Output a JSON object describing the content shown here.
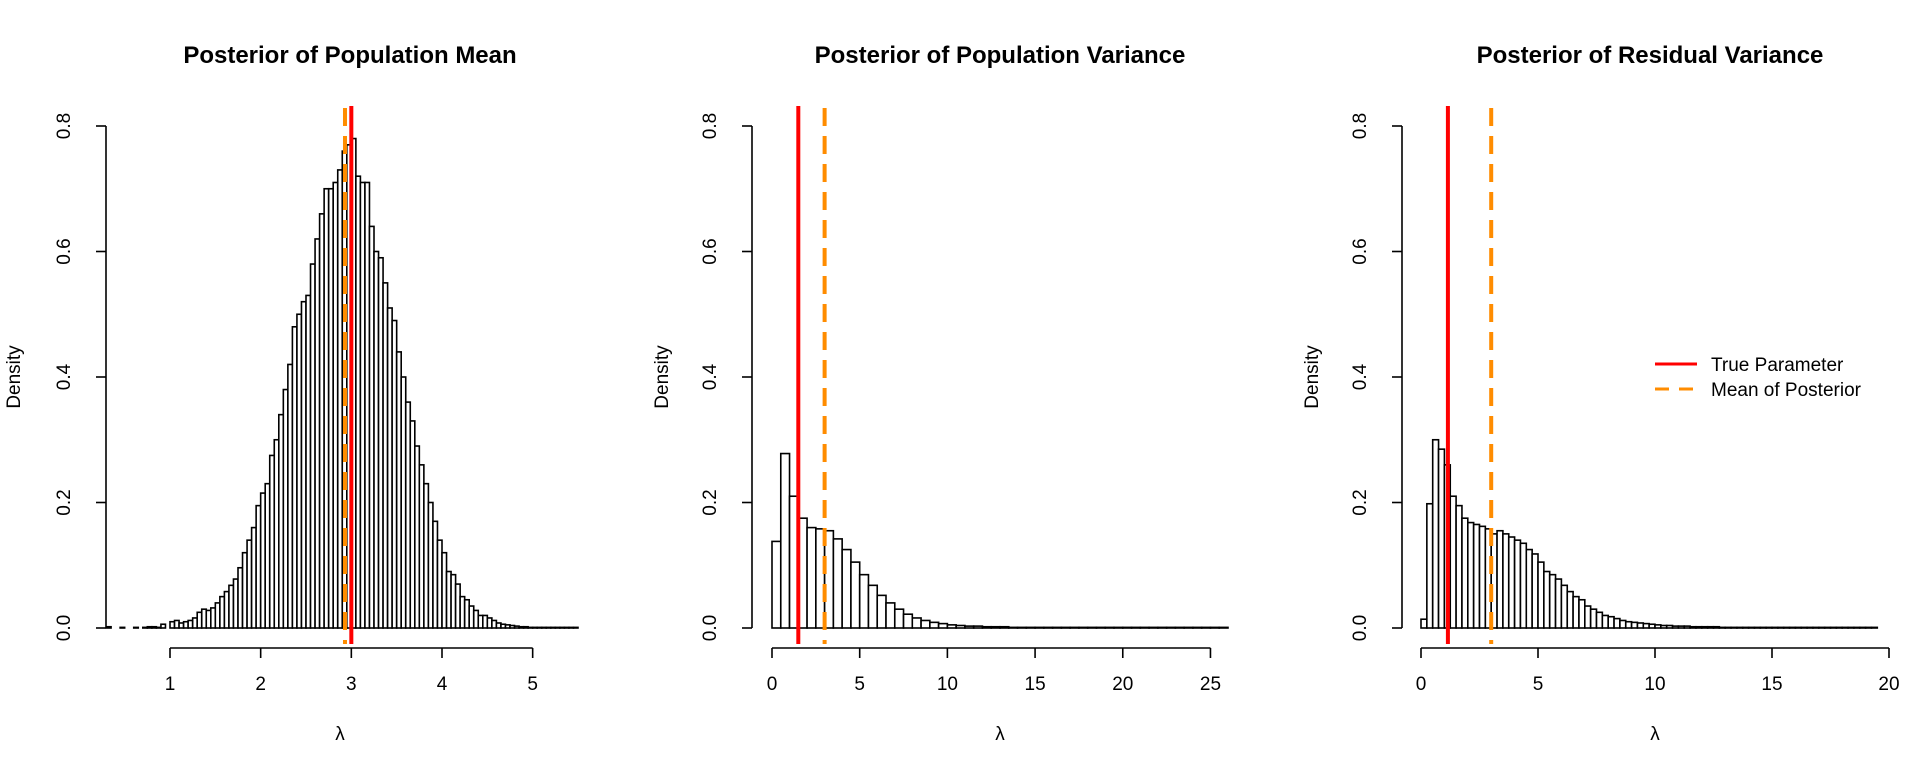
{
  "chart_data": [
    {
      "type": "histogram",
      "title": "Posterior of Population Mean",
      "xlabel": "λ",
      "ylabel": "Density",
      "xlim": [
        0.25,
        5.5
      ],
      "ylim": [
        0,
        0.8
      ],
      "xticks": [
        1,
        2,
        3,
        4,
        5
      ],
      "yticks": [
        0.0,
        0.2,
        0.4,
        0.6,
        0.8
      ],
      "bin_start": 0.3,
      "bin_width": 0.05,
      "density": [
        0.002,
        0,
        0,
        0.001,
        0,
        0,
        0.001,
        0,
        0.001,
        0.002,
        0.002,
        0.001,
        0.006,
        0,
        0.01,
        0.012,
        0.008,
        0.01,
        0.012,
        0.016,
        0.025,
        0.03,
        0.028,
        0.032,
        0.04,
        0.05,
        0.058,
        0.068,
        0.078,
        0.096,
        0.12,
        0.14,
        0.16,
        0.195,
        0.215,
        0.23,
        0.275,
        0.3,
        0.34,
        0.38,
        0.42,
        0.48,
        0.5,
        0.52,
        0.53,
        0.58,
        0.62,
        0.66,
        0.7,
        0.7,
        0.71,
        0.73,
        0.76,
        0.77,
        0.78,
        0.72,
        0.71,
        0.71,
        0.64,
        0.6,
        0.59,
        0.55,
        0.51,
        0.49,
        0.44,
        0.4,
        0.36,
        0.33,
        0.29,
        0.26,
        0.23,
        0.2,
        0.17,
        0.14,
        0.12,
        0.09,
        0.085,
        0.07,
        0.05,
        0.045,
        0.035,
        0.028,
        0.02,
        0.02,
        0.016,
        0.012,
        0.008,
        0.006,
        0.005,
        0.004,
        0.003,
        0.002,
        0.002,
        0.001,
        0.001,
        0.001,
        0.001,
        0.001,
        0.001,
        0.001,
        0.001,
        0.001,
        0.001,
        0.001
      ],
      "true_value": 3.0,
      "posterior_mean": 2.93
    },
    {
      "type": "histogram",
      "title": "Posterior of Population Variance",
      "xlabel": "λ",
      "ylabel": "Density",
      "xlim": [
        0,
        26
      ],
      "ylim": [
        0,
        0.8
      ],
      "xticks": [
        0,
        5,
        10,
        15,
        20,
        25
      ],
      "yticks": [
        0.0,
        0.2,
        0.4,
        0.6,
        0.8
      ],
      "bin_start": 0,
      "bin_width": 0.5,
      "density": [
        0.138,
        0.278,
        0.21,
        0.175,
        0.16,
        0.158,
        0.155,
        0.142,
        0.125,
        0.105,
        0.085,
        0.068,
        0.052,
        0.04,
        0.03,
        0.022,
        0.016,
        0.012,
        0.009,
        0.007,
        0.005,
        0.004,
        0.003,
        0.003,
        0.002,
        0.002,
        0.002,
        0.001,
        0.001,
        0.001,
        0.001,
        0.001,
        0.001,
        0.001,
        0.001,
        0.001,
        0.001,
        0.001,
        0.001,
        0.001,
        0.001,
        0.001,
        0.001,
        0.001,
        0.001,
        0.001,
        0.001,
        0.001,
        0.001,
        0.001,
        0.001,
        0.001
      ],
      "true_value": 1.5,
      "posterior_mean": 3.0
    },
    {
      "type": "histogram",
      "title": "Posterior of Residual Variance",
      "xlabel": "λ",
      "ylabel": "Density",
      "xlim": [
        0,
        20
      ],
      "ylim": [
        0,
        0.8
      ],
      "xticks": [
        0,
        5,
        10,
        15,
        20
      ],
      "yticks": [
        0.0,
        0.2,
        0.4,
        0.6,
        0.8
      ],
      "bin_start": 0,
      "bin_width": 0.25,
      "density": [
        0.014,
        0.198,
        0.3,
        0.285,
        0.26,
        0.21,
        0.195,
        0.175,
        0.168,
        0.165,
        0.162,
        0.158,
        0.15,
        0.155,
        0.15,
        0.145,
        0.14,
        0.135,
        0.125,
        0.118,
        0.105,
        0.09,
        0.085,
        0.078,
        0.068,
        0.058,
        0.05,
        0.045,
        0.035,
        0.03,
        0.025,
        0.02,
        0.018,
        0.015,
        0.012,
        0.01,
        0.009,
        0.008,
        0.007,
        0.006,
        0.005,
        0.004,
        0.004,
        0.003,
        0.003,
        0.003,
        0.002,
        0.002,
        0.002,
        0.002,
        0.002,
        0.001,
        0.001,
        0.001,
        0.001,
        0.001,
        0.001,
        0.001,
        0.001,
        0.001,
        0.001,
        0.001,
        0.001,
        0.001,
        0.001,
        0.001,
        0.001,
        0.001,
        0.001,
        0.001,
        0.001,
        0.001,
        0.001,
        0.001,
        0.001,
        0.001,
        0.001,
        0.001
      ],
      "true_value": 1.15,
      "posterior_mean": 3.0
    }
  ],
  "legend": {
    "placement": "right",
    "entries": [
      {
        "label": "True Parameter",
        "color": "#ff0000",
        "style": "solid"
      },
      {
        "label": "Mean of Posterior",
        "color": "#ff8c00",
        "style": "dashed"
      }
    ]
  },
  "colors": {
    "true_line": "#ff0000",
    "mean_line": "#ff8c00",
    "bar_fill": "#ffffff",
    "bar_stroke": "#000000"
  }
}
